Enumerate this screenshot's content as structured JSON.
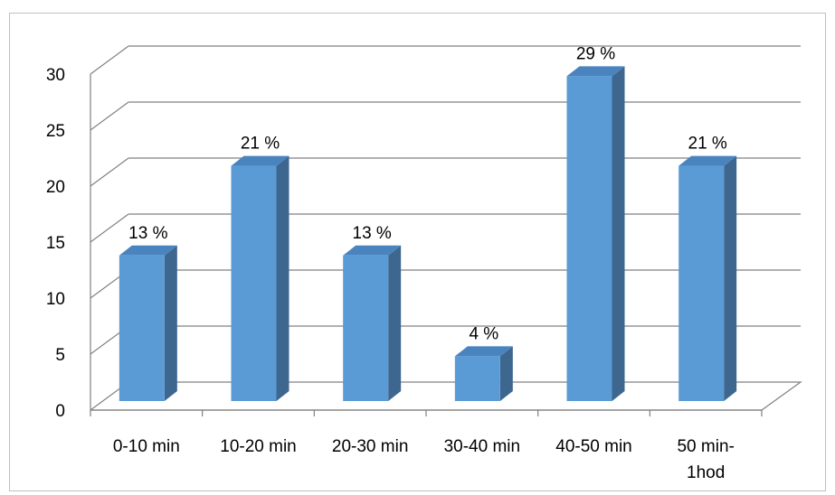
{
  "chart_data": {
    "type": "bar",
    "style": "3d-column",
    "categories": [
      "0-10 min",
      "10-20 min",
      "20-30 min",
      "30-40 min",
      "40-50 min",
      "50 min-1hod"
    ],
    "values": [
      13,
      21,
      13,
      4,
      29,
      21
    ],
    "data_labels": [
      "13 %",
      "21 %",
      "13 %",
      "4 %",
      "29 %",
      "21 %"
    ],
    "yticks": [
      0,
      5,
      10,
      15,
      20,
      25,
      30
    ],
    "ylim": [
      0,
      30
    ],
    "title": "",
    "xlabel": "",
    "ylabel": "",
    "grid": true,
    "legend": "none",
    "colors": {
      "bar_front": "#5b9bd5",
      "bar_top": "#4a84bf",
      "bar_side": "#3e6790",
      "gridline": "#808080"
    }
  }
}
